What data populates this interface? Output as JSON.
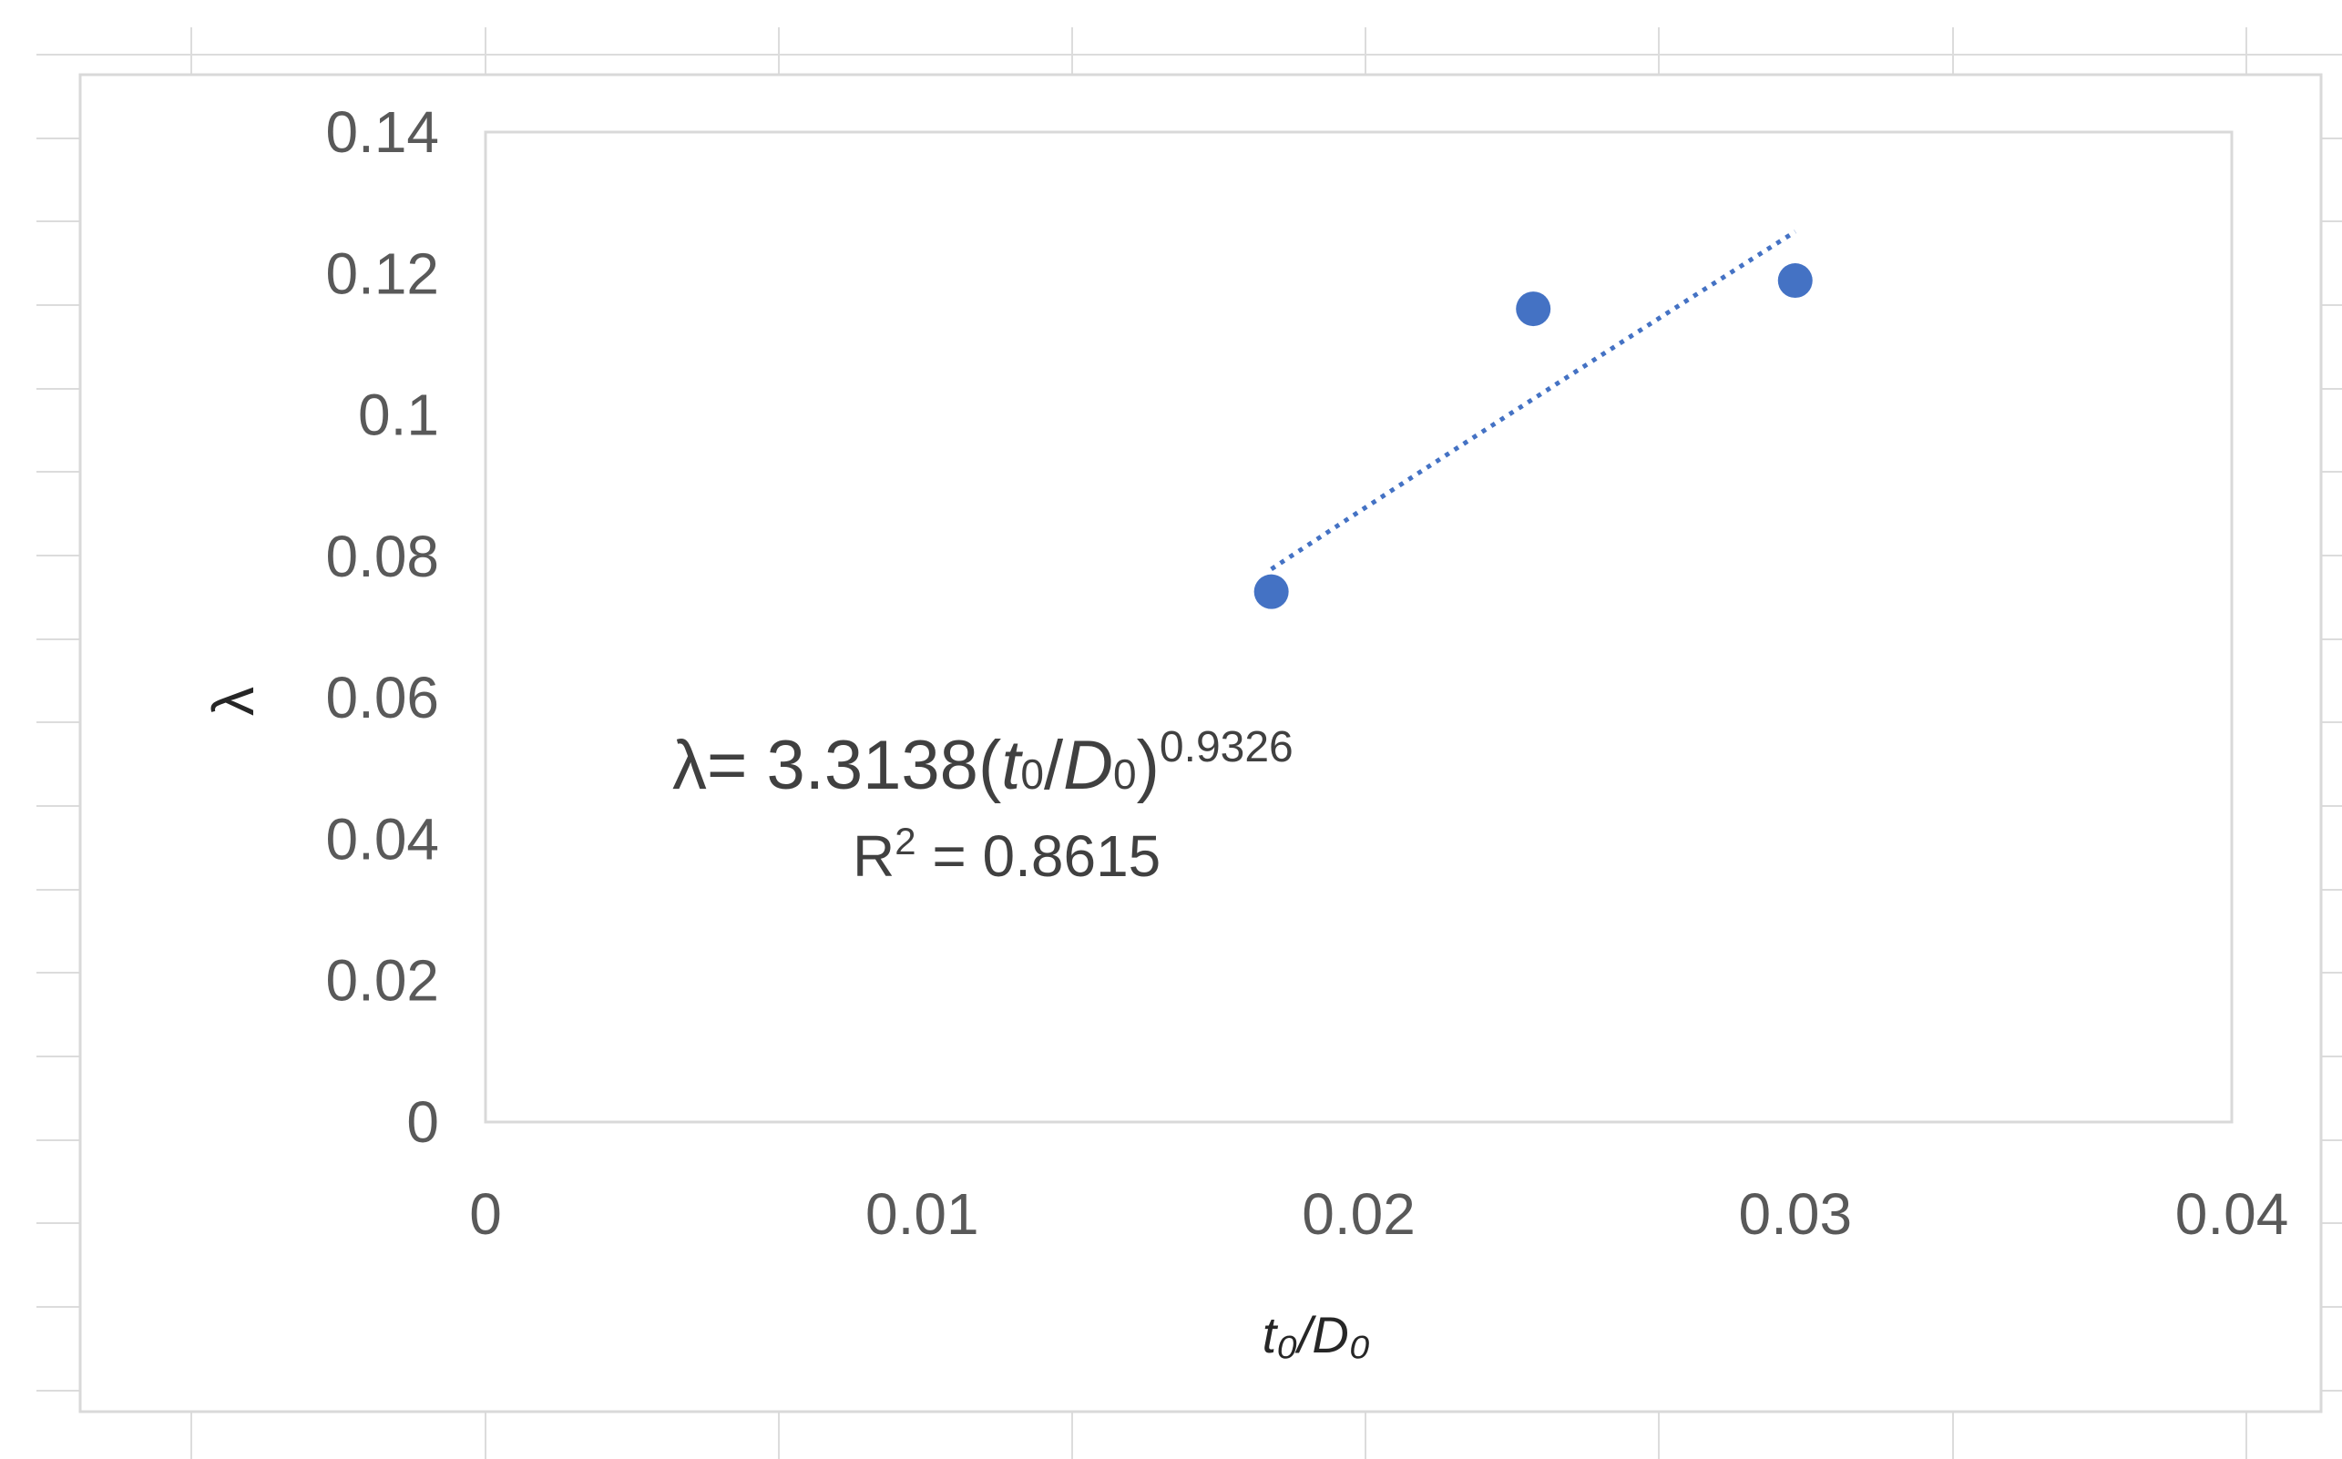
{
  "chart_data": {
    "type": "scatter",
    "title": "",
    "xlabel": "t₀/D₀",
    "ylabel": "λ",
    "xlim": [
      0,
      0.04
    ],
    "ylim": [
      0,
      0.14
    ],
    "x_ticks": [
      "0",
      "0.01",
      "0.02",
      "0.03",
      "0.04"
    ],
    "y_ticks": [
      "0",
      "0.02",
      "0.04",
      "0.06",
      "0.08",
      "0.1",
      "0.12",
      "0.14"
    ],
    "grid": false,
    "legend": "none",
    "series": [
      {
        "color": "#4472C4",
        "points": [
          {
            "x": 0.018,
            "y": 0.075
          },
          {
            "x": 0.024,
            "y": 0.115
          },
          {
            "x": 0.03,
            "y": 0.119
          }
        ]
      }
    ],
    "trendline": {
      "type": "power",
      "coefficient": 3.3138,
      "exponent": 0.9326,
      "x_range": [
        0.018,
        0.03
      ],
      "style": "dotted",
      "color": "#4472C4",
      "equation_label": {
        "prefix": "λ= 3.3138(",
        "t": "t",
        "t_sub": "0",
        "slash": "/",
        "d": "D",
        "d_sub": "0",
        "close": ")",
        "exponent": "0.9326"
      },
      "r2_label": {
        "r": "R",
        "sup": "2",
        "value": " = 0.8615"
      }
    }
  }
}
